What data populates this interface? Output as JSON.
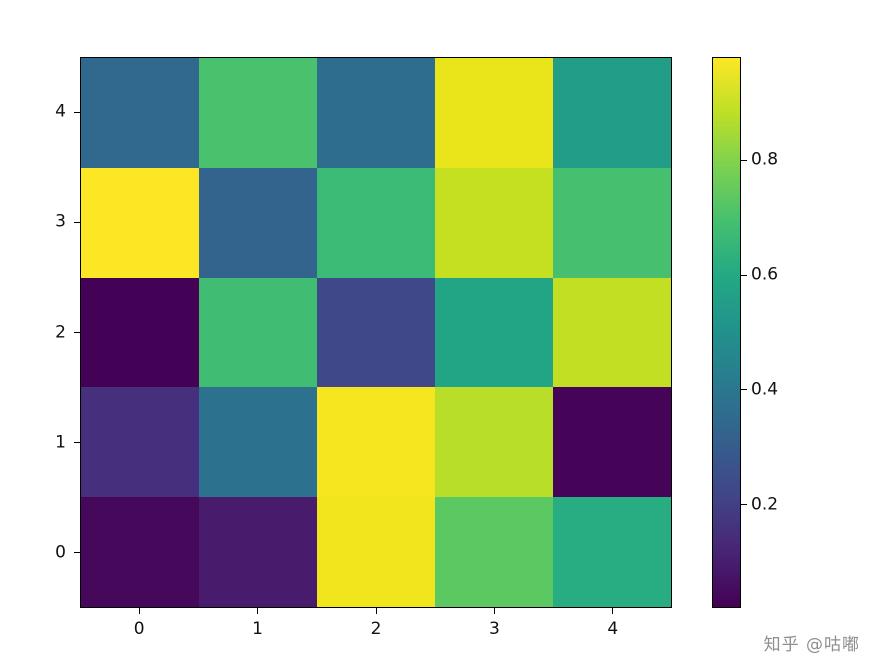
{
  "figure": {
    "background": "#ffffff",
    "watermark": "知乎 @咕嘟",
    "watermark_color": "#8e8e8e"
  },
  "chart_data": {
    "type": "heatmap",
    "title": "",
    "xlabel": "",
    "ylabel": "",
    "colormap": "viridis",
    "grid": "off",
    "x_ticks": [
      "0",
      "1",
      "2",
      "3",
      "4"
    ],
    "y_ticks_top_to_bottom": [
      "4",
      "3",
      "2",
      "1",
      "0"
    ],
    "rows_top_to_bottom": [
      {
        "y": 4,
        "values": [
          0.37,
          0.71,
          0.38,
          0.95,
          0.55
        ],
        "colors": [
          "#31688e",
          "#4ac16d",
          "#2e6d8e",
          "#eae51a",
          "#219d88"
        ]
      },
      {
        "y": 3,
        "values": [
          0.99,
          0.36,
          0.67,
          0.9,
          0.7
        ],
        "colors": [
          "#fde725",
          "#33648d",
          "#3bbb75",
          "#c5e021",
          "#46c06e"
        ]
      },
      {
        "y": 2,
        "values": [
          0.01,
          0.69,
          0.21,
          0.58,
          0.9
        ],
        "colors": [
          "#440256",
          "#40bd72",
          "#3f4889",
          "#21a585",
          "#c2df23"
        ]
      },
      {
        "y": 1,
        "values": [
          0.13,
          0.42,
          0.97,
          0.88,
          0.02
        ],
        "colors": [
          "#46307e",
          "#2c718e",
          "#f6e620",
          "#b8de29",
          "#450457"
        ]
      },
      {
        "y": 0,
        "values": [
          0.05,
          0.09,
          0.95,
          0.75,
          0.62
        ],
        "colors": [
          "#45085b",
          "#481b6d",
          "#f1e51d",
          "#5bc862",
          "#27ad81"
        ]
      }
    ],
    "colorbar": {
      "position": "right",
      "ticks": [
        "0.8",
        "0.6",
        "0.4",
        "0.2"
      ],
      "tick_values": [
        0.8,
        0.6,
        0.4,
        0.2
      ],
      "vmin": 0.02,
      "vmax": 0.98,
      "gradient_stops_bottom_to_top": [
        "#440154",
        "#482475",
        "#414487",
        "#355f8d",
        "#2a788e",
        "#21918c",
        "#22a884",
        "#44bf70",
        "#7ad151",
        "#bddf26",
        "#fde725"
      ]
    }
  }
}
